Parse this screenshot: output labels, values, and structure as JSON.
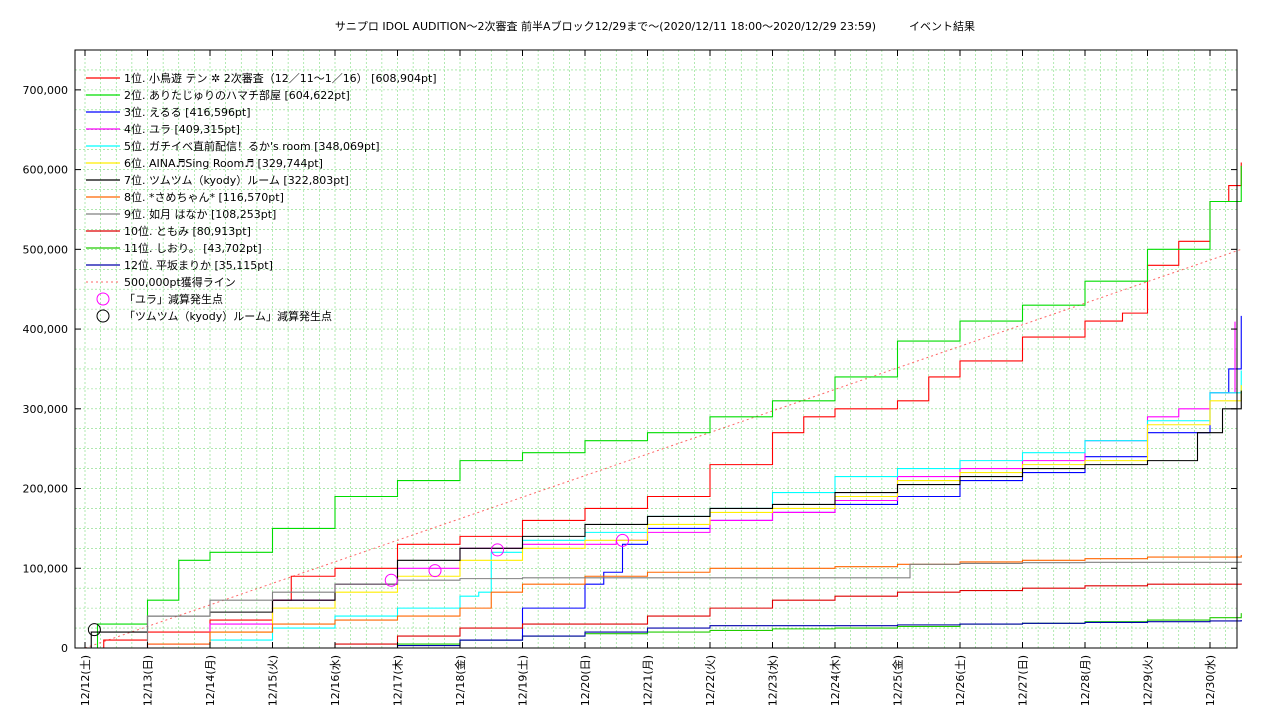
{
  "chart_data": {
    "type": "line",
    "title": "サニプロ IDOL AUDITION〜2次審査 前半Aブロック12/29まで〜(2020/12/11 18:00〜2020/12/29 23:59)　　　イベント結果",
    "ylim": [
      0,
      750000
    ],
    "y_ticks": [
      "0",
      "100,000",
      "200,000",
      "300,000",
      "400,000",
      "500,000",
      "600,000",
      "700,000"
    ],
    "y_tick_values": [
      0,
      100000,
      200000,
      300000,
      400000,
      500000,
      600000,
      700000
    ],
    "x_day_range": [
      0,
      18.5
    ],
    "x_ticks": [
      "12/12(土)",
      "12/13(日)",
      "12/14(月)",
      "12/15(火)",
      "12/16(水)",
      "12/17(木)",
      "12/18(金)",
      "12/19(土)",
      "12/20(日)",
      "12/21(月)",
      "12/22(火)",
      "12/23(水)",
      "12/24(木)",
      "12/25(金)",
      "12/26(土)",
      "12/27(日)",
      "12/28(月)",
      "12/29(火)",
      "12/30(水)"
    ],
    "grid": true,
    "legend_position": "top-left",
    "series": [
      {
        "name": "1位. 小鳥遊 テン ✲ 2次審査（12／11〜1／16） [608,904pt]",
        "color": "#ff0000",
        "points": [
          [
            0,
            0
          ],
          [
            0.3,
            10000
          ],
          [
            1,
            20000
          ],
          [
            2,
            35000
          ],
          [
            3,
            60000
          ],
          [
            3.3,
            90000
          ],
          [
            4,
            100000
          ],
          [
            5,
            130000
          ],
          [
            6,
            140000
          ],
          [
            7,
            160000
          ],
          [
            8,
            175000
          ],
          [
            9,
            190000
          ],
          [
            10,
            230000
          ],
          [
            11,
            270000
          ],
          [
            11.5,
            290000
          ],
          [
            12,
            300000
          ],
          [
            13,
            310000
          ],
          [
            13.5,
            340000
          ],
          [
            14,
            360000
          ],
          [
            15,
            390000
          ],
          [
            16,
            410000
          ],
          [
            16.6,
            420000
          ],
          [
            17,
            480000
          ],
          [
            17.5,
            510000
          ],
          [
            18,
            560000
          ],
          [
            18.3,
            580000
          ],
          [
            18.5,
            608904
          ]
        ]
      },
      {
        "name": "2位. ありたじゅりのハマチ部屋 [604,622pt]",
        "color": "#00dd00",
        "points": [
          [
            0,
            0
          ],
          [
            0.2,
            30000
          ],
          [
            1,
            60000
          ],
          [
            1.5,
            110000
          ],
          [
            2,
            120000
          ],
          [
            3,
            150000
          ],
          [
            4,
            190000
          ],
          [
            5,
            210000
          ],
          [
            6,
            235000
          ],
          [
            7,
            245000
          ],
          [
            8,
            260000
          ],
          [
            9,
            270000
          ],
          [
            10,
            290000
          ],
          [
            11,
            310000
          ],
          [
            12,
            340000
          ],
          [
            13,
            385000
          ],
          [
            14,
            410000
          ],
          [
            15,
            430000
          ],
          [
            16,
            460000
          ],
          [
            17,
            500000
          ],
          [
            18,
            560000
          ],
          [
            18.5,
            604622
          ]
        ]
      },
      {
        "name": "3位. えるる [416,596pt]",
        "color": "#0000ff",
        "points": [
          [
            0,
            0
          ],
          [
            5,
            0
          ],
          [
            6,
            10000
          ],
          [
            7,
            50000
          ],
          [
            8,
            80000
          ],
          [
            8.3,
            95000
          ],
          [
            8.6,
            130000
          ],
          [
            9,
            150000
          ],
          [
            10,
            160000
          ],
          [
            11,
            170000
          ],
          [
            12,
            180000
          ],
          [
            13,
            190000
          ],
          [
            14,
            210000
          ],
          [
            15,
            220000
          ],
          [
            16,
            240000
          ],
          [
            17,
            270000
          ],
          [
            18,
            320000
          ],
          [
            18.3,
            350000
          ],
          [
            18.5,
            416596
          ]
        ]
      },
      {
        "name": "4位. ユラ [409,315pt]",
        "color": "#ff00ff",
        "points": [
          [
            0,
            0
          ],
          [
            1,
            5000
          ],
          [
            2,
            30000
          ],
          [
            3,
            60000
          ],
          [
            4,
            80000
          ],
          [
            5,
            100000
          ],
          [
            6,
            125000
          ],
          [
            7,
            130000
          ],
          [
            8,
            130000
          ],
          [
            8.5,
            135000
          ],
          [
            9,
            145000
          ],
          [
            10,
            160000
          ],
          [
            11,
            170000
          ],
          [
            12,
            185000
          ],
          [
            13,
            215000
          ],
          [
            14,
            225000
          ],
          [
            15,
            235000
          ],
          [
            16,
            260000
          ],
          [
            17,
            290000
          ],
          [
            17.5,
            300000
          ],
          [
            18,
            320000
          ],
          [
            18.4,
            409315
          ]
        ]
      },
      {
        "name": "5位. ガチイベ直前配信！るか's room [348,069pt]",
        "color": "#00ffff",
        "points": [
          [
            0,
            0
          ],
          [
            2,
            10000
          ],
          [
            3,
            25000
          ],
          [
            4,
            40000
          ],
          [
            5,
            50000
          ],
          [
            6,
            65000
          ],
          [
            6.3,
            70000
          ],
          [
            6.5,
            120000
          ],
          [
            7,
            135000
          ],
          [
            8,
            145000
          ],
          [
            9,
            165000
          ],
          [
            10,
            175000
          ],
          [
            11,
            195000
          ],
          [
            12,
            215000
          ],
          [
            13,
            225000
          ],
          [
            14,
            235000
          ],
          [
            15,
            245000
          ],
          [
            16,
            260000
          ],
          [
            17,
            285000
          ],
          [
            18,
            320000
          ],
          [
            18.5,
            348069
          ]
        ]
      },
      {
        "name": "6位. AINA♬Sing Room♬ [329,744pt]",
        "color": "#ffee00",
        "points": [
          [
            0,
            0
          ],
          [
            2,
            20000
          ],
          [
            3,
            50000
          ],
          [
            4,
            70000
          ],
          [
            5,
            90000
          ],
          [
            6,
            110000
          ],
          [
            7,
            125000
          ],
          [
            8,
            135000
          ],
          [
            9,
            155000
          ],
          [
            10,
            170000
          ],
          [
            11,
            175000
          ],
          [
            12,
            190000
          ],
          [
            13,
            210000
          ],
          [
            14,
            220000
          ],
          [
            15,
            230000
          ],
          [
            16,
            235000
          ],
          [
            17,
            280000
          ],
          [
            18,
            310000
          ],
          [
            18.5,
            329744
          ]
        ]
      },
      {
        "name": "7位. ツムツム（kyody）ルーム [322,803pt]",
        "color": "#000000",
        "points": [
          [
            0,
            0
          ],
          [
            0.1,
            20000
          ],
          [
            1,
            40000
          ],
          [
            2,
            45000
          ],
          [
            3,
            60000
          ],
          [
            4,
            80000
          ],
          [
            5,
            110000
          ],
          [
            6,
            125000
          ],
          [
            7,
            140000
          ],
          [
            8,
            155000
          ],
          [
            9,
            165000
          ],
          [
            10,
            175000
          ],
          [
            11,
            180000
          ],
          [
            12,
            195000
          ],
          [
            13,
            205000
          ],
          [
            14,
            215000
          ],
          [
            15,
            225000
          ],
          [
            16,
            230000
          ],
          [
            17,
            235000
          ],
          [
            17.8,
            270000
          ],
          [
            18.2,
            300000
          ],
          [
            18.5,
            322803
          ]
        ]
      },
      {
        "name": "8位. *さめちゃん* [116,570pt]",
        "color": "#ff6600",
        "points": [
          [
            0,
            0
          ],
          [
            1,
            5000
          ],
          [
            2,
            20000
          ],
          [
            3,
            30000
          ],
          [
            4,
            35000
          ],
          [
            5,
            40000
          ],
          [
            6,
            50000
          ],
          [
            6.5,
            70000
          ],
          [
            7,
            80000
          ],
          [
            8,
            90000
          ],
          [
            9,
            95000
          ],
          [
            10,
            100000
          ],
          [
            11,
            100000
          ],
          [
            12,
            102000
          ],
          [
            13,
            105000
          ],
          [
            14,
            108000
          ],
          [
            15,
            110000
          ],
          [
            16,
            112000
          ],
          [
            17,
            114000
          ],
          [
            18.5,
            116570
          ]
        ]
      },
      {
        "name": "9位. 如月 はなか [108,253pt]",
        "color": "#808080",
        "points": [
          [
            0,
            0
          ],
          [
            1,
            40000
          ],
          [
            2,
            60000
          ],
          [
            3,
            70000
          ],
          [
            4,
            80000
          ],
          [
            5,
            85000
          ],
          [
            6,
            87000
          ],
          [
            7,
            88000
          ],
          [
            8,
            88000
          ],
          [
            9,
            88000
          ],
          [
            10,
            88000
          ],
          [
            11,
            88000
          ],
          [
            12,
            88000
          ],
          [
            13,
            88000
          ],
          [
            13.2,
            105000
          ],
          [
            14,
            106000
          ],
          [
            15,
            107000
          ],
          [
            16,
            107500
          ],
          [
            18.5,
            108253
          ]
        ]
      },
      {
        "name": "10位. ともみ [80,913pt]",
        "color": "#dd0000",
        "points": [
          [
            0,
            0
          ],
          [
            4,
            5000
          ],
          [
            5,
            15000
          ],
          [
            6,
            25000
          ],
          [
            7,
            30000
          ],
          [
            8,
            30000
          ],
          [
            9,
            40000
          ],
          [
            10,
            50000
          ],
          [
            11,
            60000
          ],
          [
            12,
            65000
          ],
          [
            13,
            70000
          ],
          [
            14,
            72000
          ],
          [
            15,
            75000
          ],
          [
            16,
            78000
          ],
          [
            17,
            80000
          ],
          [
            18.5,
            80913
          ]
        ]
      },
      {
        "name": "11位. しおり。 [43,702pt]",
        "color": "#22cc00",
        "points": [
          [
            0,
            0
          ],
          [
            5,
            5000
          ],
          [
            6,
            10000
          ],
          [
            7,
            15000
          ],
          [
            8,
            18000
          ],
          [
            9,
            20000
          ],
          [
            10,
            22000
          ],
          [
            11,
            24000
          ],
          [
            12,
            25000
          ],
          [
            13,
            27000
          ],
          [
            14,
            30000
          ],
          [
            15,
            31000
          ],
          [
            16,
            33000
          ],
          [
            17,
            35000
          ],
          [
            18,
            38000
          ],
          [
            18.5,
            43702
          ]
        ]
      },
      {
        "name": "12位. 平坂まりか [35,115pt]",
        "color": "#0000aa",
        "points": [
          [
            0,
            0
          ],
          [
            5,
            3000
          ],
          [
            6,
            10000
          ],
          [
            7,
            15000
          ],
          [
            8,
            20000
          ],
          [
            9,
            25000
          ],
          [
            10,
            28000
          ],
          [
            11,
            28000
          ],
          [
            12,
            28000
          ],
          [
            13,
            29000
          ],
          [
            14,
            30000
          ],
          [
            15,
            31000
          ],
          [
            16,
            32000
          ],
          [
            17,
            33000
          ],
          [
            18,
            34000
          ],
          [
            18.5,
            35115
          ]
        ]
      }
    ],
    "reference_line": {
      "name": "500,000pt獲得ライン",
      "color": "#ff6666",
      "points": [
        [
          0,
          0
        ],
        [
          18.5,
          500000
        ]
      ]
    },
    "markers": [
      {
        "name": "「ユラ」減算発生点",
        "color": "#ff00ff",
        "points": [
          [
            4.9,
            85000
          ],
          [
            5.6,
            97000
          ],
          [
            6.6,
            123000
          ],
          [
            8.6,
            135000
          ]
        ]
      },
      {
        "name": "「ツムツム（kyody）ルーム」減算発生点",
        "color": "#000000",
        "points": [
          [
            0.15,
            23000
          ]
        ]
      }
    ]
  }
}
